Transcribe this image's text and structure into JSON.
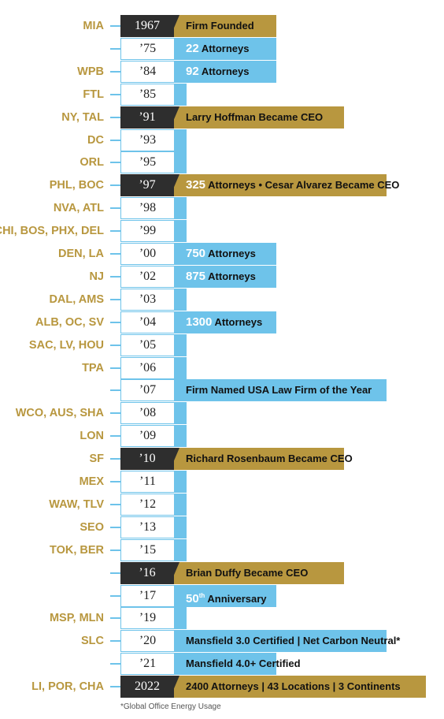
{
  "colors": {
    "accent_gold": "#b8973f",
    "accent_blue": "#6ec3ea",
    "dark": "#2e2e2e"
  },
  "rows": [
    {
      "loc": "MIA",
      "year": "1967",
      "dark": true,
      "bar": "gold",
      "text": "Firm Founded",
      "w": 130
    },
    {
      "loc": "",
      "year": "’75",
      "bar": "blue",
      "num": "22",
      "text": " Attorneys",
      "w": 130
    },
    {
      "loc": "WPB",
      "year": "’84",
      "bar": "blue",
      "num": "92",
      "text": " Attorneys",
      "w": 130
    },
    {
      "loc": "FTL",
      "year": "’85",
      "bar": "blue",
      "text": "",
      "w": 16
    },
    {
      "loc": "NY, TAL",
      "year": "’91",
      "dark": true,
      "bar": "gold",
      "text": "Larry Hoffman Became CEO",
      "w": 216
    },
    {
      "loc": "DC",
      "year": "’93",
      "bar": "blue",
      "text": "",
      "w": 16
    },
    {
      "loc": "ORL",
      "year": "’95",
      "bar": "blue",
      "text": "",
      "w": 16
    },
    {
      "loc": "PHL, BOC",
      "year": "’97",
      "dark": true,
      "bar": "gold",
      "num": "325",
      "text": " Attorneys • Cesar Alvarez Became CEO",
      "w": 270
    },
    {
      "loc": "NVA, ATL",
      "year": "’98",
      "bar": "blue",
      "text": "",
      "w": 16
    },
    {
      "loc": "CHI, BOS, PHX, DEL",
      "year": "’99",
      "bar": "blue",
      "text": "",
      "w": 16
    },
    {
      "loc": "DEN, LA",
      "year": "’00",
      "bar": "blue",
      "num": "750",
      "text": " Attorneys",
      "w": 130
    },
    {
      "loc": "NJ",
      "year": "’02",
      "bar": "blue",
      "num": "875",
      "text": " Attorneys",
      "w": 130
    },
    {
      "loc": "DAL, AMS",
      "year": "’03",
      "bar": "blue",
      "text": "",
      "w": 16
    },
    {
      "loc": "ALB, OC, SV",
      "year": "’04",
      "bar": "blue",
      "num": "1300",
      "text": " Attorneys",
      "w": 130
    },
    {
      "loc": "SAC, LV, HOU",
      "year": "’05",
      "bar": "blue",
      "text": "",
      "w": 16
    },
    {
      "loc": "TPA",
      "year": "’06",
      "bar": "blue",
      "text": "",
      "w": 16
    },
    {
      "loc": "",
      "year": "’07",
      "bar": "blue",
      "text": "Firm Named USA Law Firm of the Year",
      "w": 270
    },
    {
      "loc": "WCO, AUS, SHA",
      "year": "’08",
      "bar": "blue",
      "text": "",
      "w": 16
    },
    {
      "loc": "LON",
      "year": "’09",
      "bar": "blue",
      "text": "",
      "w": 16
    },
    {
      "loc": "SF",
      "year": "’10",
      "dark": true,
      "bar": "gold",
      "text": "Richard Rosenbaum Became CEO",
      "w": 216
    },
    {
      "loc": "MEX",
      "year": "’11",
      "bar": "blue",
      "text": "",
      "w": 16
    },
    {
      "loc": "WAW, TLV",
      "year": "’12",
      "bar": "blue",
      "text": "",
      "w": 16
    },
    {
      "loc": "SEO",
      "year": "’13",
      "bar": "blue",
      "text": "",
      "w": 16
    },
    {
      "loc": "TOK, BER",
      "year": "’15",
      "bar": "blue",
      "text": "",
      "w": 16
    },
    {
      "loc": "",
      "year": "’16",
      "dark": true,
      "bar": "gold",
      "text": "Brian Duffy Became CEO",
      "w": 216
    },
    {
      "loc": "",
      "year": "’17",
      "bar": "blue",
      "num": "50",
      "sup": "th",
      "text": " Anniversary",
      "w": 130
    },
    {
      "loc": "MSP, MLN",
      "year": "’19",
      "bar": "blue",
      "text": "",
      "w": 16
    },
    {
      "loc": "SLC",
      "year": "’20",
      "bar": "blue",
      "text": "Mansfield 3.0 Certified | Net Carbon Neutral*",
      "w": 270
    },
    {
      "loc": "",
      "year": "’21",
      "bar": "blue",
      "text": "Mansfield 4.0+ Certified",
      "w": 130
    },
    {
      "loc": "LI,  POR, CHA",
      "year": "2022",
      "dark": true,
      "bar": "gold",
      "text": "2400 Attorneys | 43 Locations | 3 Continents",
      "w": 320
    }
  ],
  "footnote": "*Global Office Energy Usage"
}
